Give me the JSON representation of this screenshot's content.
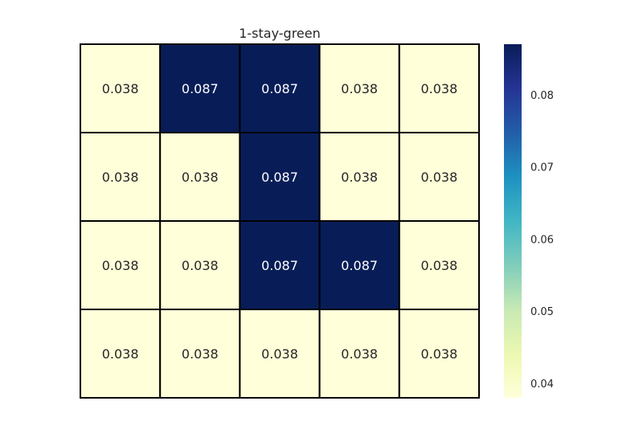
{
  "chart_data": {
    "type": "heatmap",
    "title": "1-stay-green",
    "rows": 4,
    "cols": 5,
    "values": [
      [
        0.038,
        0.087,
        0.087,
        0.038,
        0.038
      ],
      [
        0.038,
        0.038,
        0.087,
        0.038,
        0.038
      ],
      [
        0.038,
        0.038,
        0.087,
        0.087,
        0.038
      ],
      [
        0.038,
        0.038,
        0.038,
        0.038,
        0.038
      ]
    ],
    "value_labels": [
      [
        "0.038",
        "0.087",
        "0.087",
        "0.038",
        "0.038"
      ],
      [
        "0.038",
        "0.038",
        "0.087",
        "0.038",
        "0.038"
      ],
      [
        "0.038",
        "0.038",
        "0.087",
        "0.087",
        "0.038"
      ],
      [
        "0.038",
        "0.038",
        "0.038",
        "0.038",
        "0.038"
      ]
    ],
    "colormap": "YlGnBu",
    "colorbar": {
      "range": [
        0.038,
        0.087
      ],
      "ticks": [
        0.04,
        0.05,
        0.06,
        0.07,
        0.08
      ],
      "tick_labels": [
        "0.04",
        "0.05",
        "0.06",
        "0.07",
        "0.08"
      ],
      "stops": [
        "#ffffd9",
        "#edf8b1",
        "#c7e9b4",
        "#7fcdbb",
        "#41b6c4",
        "#1d91c0",
        "#225ea8",
        "#253494",
        "#081d58"
      ]
    },
    "grid": true,
    "cell_border_color": "#000000",
    "dark_text_color": "#262626",
    "light_text_color": "#ffffff"
  }
}
